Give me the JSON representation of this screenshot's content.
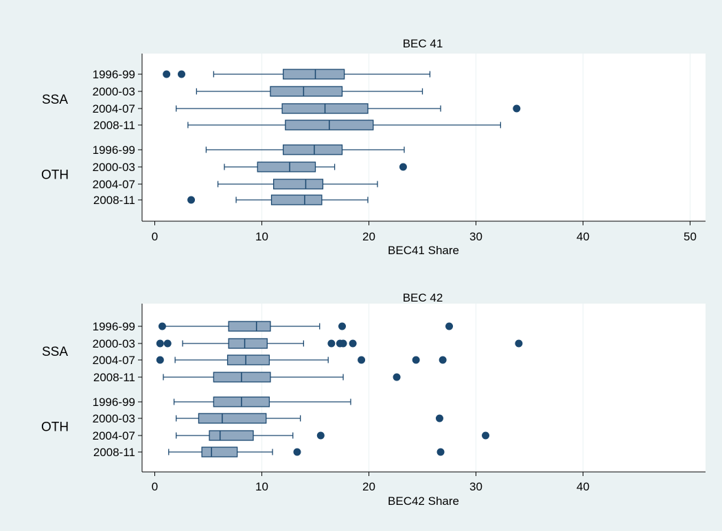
{
  "colors": {
    "background": "#EAF2F3",
    "plot_area": "#FFFFFF",
    "box_fill": "#90A8C0",
    "line": "#1A476F",
    "grid": "#EAF2F3",
    "text": "#000000"
  },
  "chart_data": [
    {
      "type": "box",
      "orientation": "horizontal",
      "title": "BEC 41",
      "xlabel": "BEC41 Share",
      "xlim": [
        -1.5,
        51
      ],
      "xticks": [
        0,
        10,
        20,
        30,
        40,
        50
      ],
      "grid": true,
      "groups": [
        {
          "name": "SSA",
          "boxes": [
            {
              "label": "1996-99",
              "whisker_low": 5.5,
              "q1": 12.0,
              "median": 15.0,
              "q3": 17.7,
              "whisker_high": 25.7,
              "outliers": [
                1.1,
                2.5
              ]
            },
            {
              "label": "2000-03",
              "whisker_low": 3.9,
              "q1": 10.8,
              "median": 13.9,
              "q3": 17.5,
              "whisker_high": 25.0,
              "outliers": []
            },
            {
              "label": "2004-07",
              "whisker_low": 2.0,
              "q1": 11.9,
              "median": 15.9,
              "q3": 19.9,
              "whisker_high": 26.7,
              "outliers": [
                33.8
              ]
            },
            {
              "label": "2008-11",
              "whisker_low": 3.1,
              "q1": 12.2,
              "median": 16.3,
              "q3": 20.4,
              "whisker_high": 32.3,
              "outliers": []
            }
          ]
        },
        {
          "name": "OTH",
          "boxes": [
            {
              "label": "1996-99",
              "whisker_low": 4.8,
              "q1": 12.0,
              "median": 14.9,
              "q3": 17.5,
              "whisker_high": 23.3,
              "outliers": []
            },
            {
              "label": "2000-03",
              "whisker_low": 6.5,
              "q1": 9.6,
              "median": 12.6,
              "q3": 15.0,
              "whisker_high": 16.8,
              "outliers": [
                23.2
              ]
            },
            {
              "label": "2004-07",
              "whisker_low": 5.9,
              "q1": 11.1,
              "median": 14.1,
              "q3": 15.7,
              "whisker_high": 20.8,
              "outliers": []
            },
            {
              "label": "2008-11",
              "whisker_low": 7.6,
              "q1": 10.9,
              "median": 14.0,
              "q3": 15.6,
              "whisker_high": 19.9,
              "outliers": [
                3.4
              ]
            }
          ]
        }
      ]
    },
    {
      "type": "box",
      "orientation": "horizontal",
      "title": "BEC 42",
      "xlabel": "BEC42 Share",
      "xlim": [
        -1.5,
        51
      ],
      "xticks": [
        0,
        10,
        20,
        30,
        40
      ],
      "grid": true,
      "groups": [
        {
          "name": "SSA",
          "boxes": [
            {
              "label": "1996-99",
              "whisker_low": 0.8,
              "q1": 6.9,
              "median": 9.5,
              "q3": 10.8,
              "whisker_high": 15.4,
              "outliers": [
                0.7,
                17.5,
                27.5
              ]
            },
            {
              "label": "2000-03",
              "whisker_low": 2.6,
              "q1": 6.9,
              "median": 8.4,
              "q3": 10.5,
              "whisker_high": 13.9,
              "outliers": [
                0.5,
                1.2,
                16.5,
                17.3,
                17.6,
                18.5,
                34.0
              ]
            },
            {
              "label": "2004-07",
              "whisker_low": 1.9,
              "q1": 6.8,
              "median": 8.5,
              "q3": 10.7,
              "whisker_high": 16.2,
              "outliers": [
                0.5,
                19.3,
                24.4,
                26.9
              ]
            },
            {
              "label": "2008-11",
              "whisker_low": 0.8,
              "q1": 5.5,
              "median": 8.1,
              "q3": 10.8,
              "whisker_high": 17.6,
              "outliers": [
                22.6
              ]
            }
          ]
        },
        {
          "name": "OTH",
          "boxes": [
            {
              "label": "1996-99",
              "whisker_low": 1.8,
              "q1": 5.5,
              "median": 8.1,
              "q3": 10.7,
              "whisker_high": 18.3,
              "outliers": []
            },
            {
              "label": "2000-03",
              "whisker_low": 2.0,
              "q1": 4.1,
              "median": 6.3,
              "q3": 10.4,
              "whisker_high": 13.6,
              "outliers": [
                26.6
              ]
            },
            {
              "label": "2004-07",
              "whisker_low": 2.0,
              "q1": 5.1,
              "median": 6.1,
              "q3": 9.2,
              "whisker_high": 12.9,
              "outliers": [
                15.5,
                30.9
              ]
            },
            {
              "label": "2008-11",
              "whisker_low": 1.3,
              "q1": 4.4,
              "median": 5.3,
              "q3": 7.7,
              "whisker_high": 11.0,
              "outliers": [
                13.3,
                26.7
              ]
            }
          ]
        }
      ]
    }
  ]
}
